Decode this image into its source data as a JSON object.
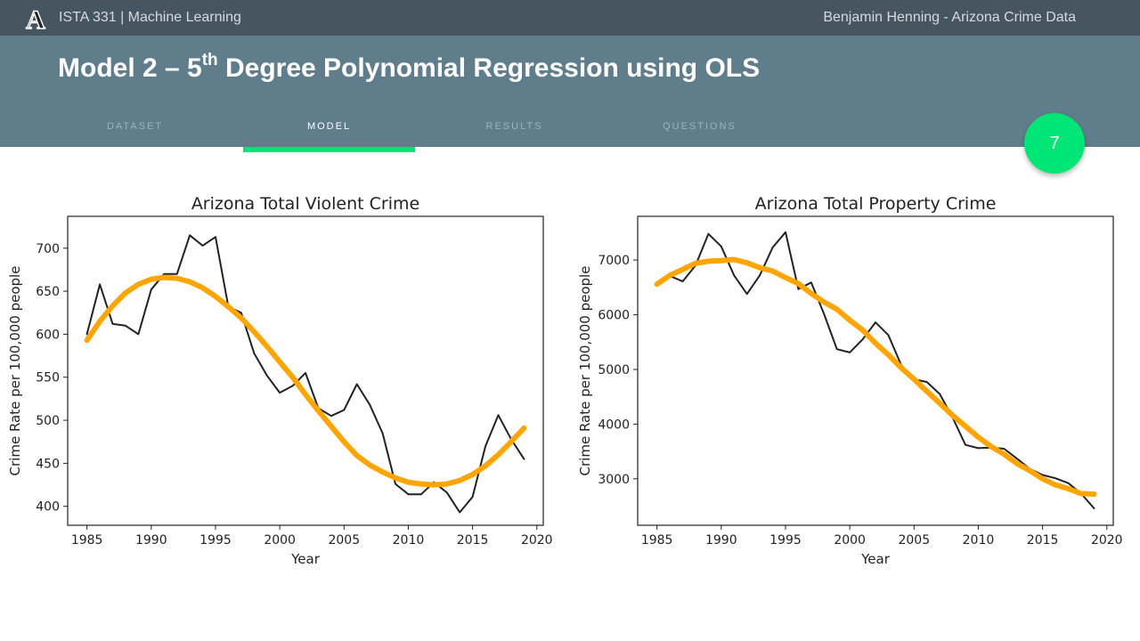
{
  "topbar": {
    "course": "ISTA 331 | Machine Learning",
    "author": "Benjamin Henning - Arizona Crime Data",
    "logo_letter": "A"
  },
  "header": {
    "title_main": "Model 2 – 5",
    "title_sup": "th",
    "title_rest": " Degree Polynomial Regression using OLS"
  },
  "tabs": [
    {
      "label": "DATASET",
      "active": false
    },
    {
      "label": "MODEL",
      "active": true
    },
    {
      "label": "RESULTS",
      "active": false
    },
    {
      "label": "QUESTIONS",
      "active": false
    }
  ],
  "page_number": "7",
  "colors": {
    "actual_line": "#222222",
    "fit_line": "#ffa500",
    "accent": "#00e676"
  },
  "chart_data": [
    {
      "type": "line",
      "title": "Arizona Total Violent Crime",
      "xlabel": "Year",
      "ylabel": "Crime Rate per 100,000 people",
      "xlim": [
        1983.5,
        2020.5
      ],
      "ylim": [
        378,
        737
      ],
      "xticks": [
        1985,
        1990,
        1995,
        2000,
        2005,
        2010,
        2015,
        2020
      ],
      "yticks": [
        400,
        450,
        500,
        550,
        600,
        650,
        700
      ],
      "grid": false,
      "x": [
        1985,
        1986,
        1987,
        1988,
        1989,
        1990,
        1991,
        1992,
        1993,
        1994,
        1995,
        1996,
        1997,
        1998,
        1999,
        2000,
        2001,
        2002,
        2003,
        2004,
        2005,
        2006,
        2007,
        2008,
        2009,
        2010,
        2011,
        2012,
        2013,
        2014,
        2015,
        2016,
        2017,
        2018,
        2019
      ],
      "series": [
        {
          "values": [
            600,
            658,
            612,
            610,
            600,
            652,
            670,
            670,
            715,
            703,
            713,
            632,
            625,
            578,
            552,
            532,
            540,
            555,
            514,
            505,
            512,
            542,
            518,
            485,
            426,
            414,
            414,
            428,
            416,
            393,
            411,
            470,
            506,
            478,
            455
          ]
        },
        {
          "values": [
            593,
            615,
            633,
            648,
            658,
            664,
            666,
            665,
            661,
            654,
            644,
            632,
            619,
            603,
            586,
            568,
            550,
            530,
            511,
            493,
            475,
            459,
            448,
            440,
            433,
            428,
            426,
            425,
            426,
            430,
            437,
            447,
            460,
            475,
            491
          ]
        }
      ]
    },
    {
      "type": "line",
      "title": "Arizona Total Property Crime",
      "xlabel": "Year",
      "ylabel": "Crime Rate per 100,000 people",
      "xlim": [
        1983.5,
        2020.5
      ],
      "ylim": [
        2150,
        7800
      ],
      "xticks": [
        1985,
        1990,
        1995,
        2000,
        2005,
        2010,
        2015,
        2020
      ],
      "yticks": [
        3000,
        4000,
        5000,
        6000,
        7000
      ],
      "grid": false,
      "x": [
        1985,
        1986,
        1987,
        1988,
        1989,
        1990,
        1991,
        1992,
        1993,
        1994,
        1995,
        1996,
        1997,
        1998,
        1999,
        2000,
        2001,
        2002,
        2003,
        2004,
        2005,
        2006,
        2007,
        2008,
        2009,
        2010,
        2011,
        2012,
        2013,
        2014,
        2015,
        2016,
        2017,
        2018,
        2019
      ],
      "series": [
        {
          "values": [
            6550,
            6710,
            6610,
            6900,
            7480,
            7250,
            6720,
            6380,
            6720,
            7230,
            7510,
            6470,
            6590,
            6010,
            5370,
            5310,
            5550,
            5860,
            5630,
            5080,
            4820,
            4770,
            4550,
            4120,
            3620,
            3560,
            3570,
            3550,
            3370,
            3180,
            3070,
            3010,
            2920,
            2730,
            2460
          ]
        },
        {
          "values": [
            6560,
            6720,
            6830,
            6940,
            6980,
            6990,
            7010,
            6950,
            6860,
            6800,
            6680,
            6570,
            6390,
            6230,
            6100,
            5900,
            5720,
            5480,
            5270,
            5030,
            4820,
            4600,
            4380,
            4160,
            3960,
            3760,
            3590,
            3450,
            3280,
            3150,
            3000,
            2890,
            2820,
            2730,
            2720
          ]
        }
      ]
    }
  ]
}
